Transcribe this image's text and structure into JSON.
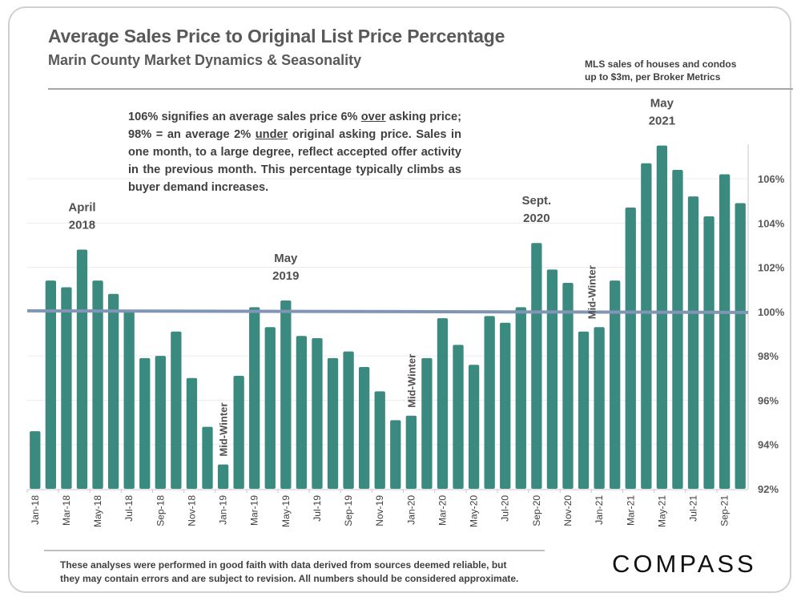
{
  "header": {
    "title": "Average Sales Price to Original List Price Percentage",
    "subtitle": "Marin County Market Dynamics & Seasonality",
    "source_line1": "MLS sales of houses and condos",
    "source_line2": "up to $3m, per Broker Metrics"
  },
  "note": {
    "part1": "106% signifies an average sales price 6% ",
    "over": "over",
    "part2": " asking price; 98% = an average 2% ",
    "under": "under",
    "part3": " original asking price. Sales in one month, to a large degree, reflect accepted offer activity in the previous month. This percentage typically climbs as buyer demand increases."
  },
  "footer": {
    "line1": "These analyses were performed in good faith with data derived from sources deemed reliable, but",
    "line2": "they may contain errors and are subject to revision. All numbers should be considered  approximate.",
    "logo": "COMPASS"
  },
  "colors": {
    "bar": "#3a8a80",
    "reference_line": "#8096b4",
    "grid": "#ececec",
    "text": "#595959"
  },
  "chart_data": {
    "type": "bar",
    "title": "Average Sales Price to Original List Price Percentage",
    "xlabel": "",
    "ylabel": "",
    "ylim": [
      92,
      107.5
    ],
    "y_ticks": [
      92,
      94,
      96,
      98,
      100,
      102,
      104,
      106
    ],
    "y_tick_labels": [
      "92%",
      "94%",
      "96%",
      "98%",
      "100%",
      "102%",
      "104%",
      "106%"
    ],
    "y_axis_side": "right",
    "grid": true,
    "reference_line": {
      "value": 100,
      "label": "100%"
    },
    "categories": [
      "Jan-18",
      "Feb-18",
      "Mar-18",
      "Apr-18",
      "May-18",
      "Jun-18",
      "Jul-18",
      "Aug-18",
      "Sep-18",
      "Oct-18",
      "Nov-18",
      "Dec-18",
      "Jan-19",
      "Feb-19",
      "Mar-19",
      "Apr-19",
      "May-19",
      "Jun-19",
      "Jul-19",
      "Aug-19",
      "Sep-19",
      "Oct-19",
      "Nov-19",
      "Dec-19",
      "Jan-20",
      "Feb-20",
      "Mar-20",
      "Apr-20",
      "May-20",
      "Jun-20",
      "Jul-20",
      "Aug-20",
      "Sep-20",
      "Oct-20",
      "Nov-20",
      "Dec-20",
      "Jan-21",
      "Feb-21",
      "Mar-21",
      "Apr-21",
      "May-21",
      "Jun-21",
      "Jul-21",
      "Aug-21",
      "Sep-21",
      "Oct-21"
    ],
    "x_tick_labels": [
      "Jan-18",
      "Mar-18",
      "May-18",
      "Jul-18",
      "Sep-18",
      "Nov-18",
      "Jan-19",
      "Mar-19",
      "May-19",
      "Jul-19",
      "Sep-19",
      "Nov-19",
      "Jan-20",
      "Mar-20",
      "May-20",
      "Jul-20",
      "Sep-20",
      "Nov-20",
      "Jan-21",
      "Mar-21",
      "May-21",
      "Jul-21",
      "Sep-21"
    ],
    "values": [
      94.6,
      101.4,
      101.1,
      102.8,
      101.4,
      100.8,
      100.0,
      97.9,
      98.0,
      99.1,
      97.0,
      94.8,
      93.1,
      97.1,
      100.2,
      99.3,
      100.5,
      98.9,
      98.8,
      97.9,
      98.2,
      97.5,
      96.4,
      95.1,
      95.3,
      97.9,
      99.7,
      98.5,
      97.6,
      99.8,
      99.5,
      100.2,
      103.1,
      101.9,
      101.3,
      99.1,
      99.3,
      101.4,
      104.7,
      106.7,
      107.5,
      106.4,
      105.2,
      104.3,
      106.2,
      104.9
    ],
    "annotations": [
      {
        "index": 3,
        "lines": [
          "April",
          "2018"
        ]
      },
      {
        "index": 16,
        "lines": [
          "May",
          "2019"
        ]
      },
      {
        "index": 32,
        "lines": [
          "Sept.",
          "2020"
        ]
      },
      {
        "index": 40,
        "lines": [
          "May",
          "2021"
        ]
      },
      {
        "index": 12,
        "vertical": "Mid-Winter"
      },
      {
        "index": 24,
        "vertical": "Mid-Winter"
      },
      {
        "index": 35.5,
        "vertical": "Mid-Winter"
      }
    ]
  }
}
